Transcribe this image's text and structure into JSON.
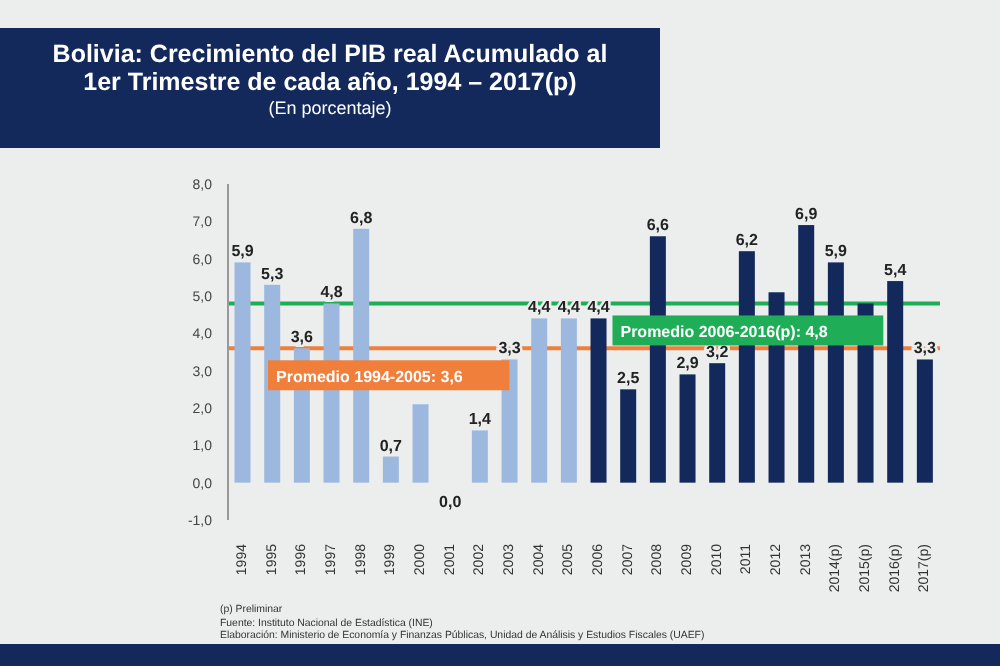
{
  "chart_data": {
    "type": "bar",
    "title": "Bolivia: Crecimiento del PIB real Acumulado al 1er Trimestre de cada año, 1994 – 2017(p)",
    "subtitle": "(En porcentaje)",
    "categories": [
      "1994",
      "1995",
      "1996",
      "1997",
      "1998",
      "1999",
      "2000",
      "2001",
      "2002",
      "2003",
      "2004",
      "2005",
      "2006",
      "2007",
      "2008",
      "2009",
      "2010",
      "2011",
      "2012",
      "2013",
      "2014(p)",
      "2015(p)",
      "2016(p)",
      "2017(p)"
    ],
    "values": [
      5.9,
      5.3,
      3.6,
      4.8,
      6.8,
      0.7,
      2.1,
      0.0,
      1.4,
      3.3,
      4.4,
      4.4,
      4.4,
      2.5,
      6.6,
      2.9,
      3.2,
      6.2,
      5.1,
      6.9,
      5.9,
      4.8,
      5.4,
      3.3
    ],
    "colors": [
      "#9db8de",
      "#9db8de",
      "#9db8de",
      "#9db8de",
      "#9db8de",
      "#9db8de",
      "#9db8de",
      "#9db8de",
      "#9db8de",
      "#9db8de",
      "#9db8de",
      "#9db8de",
      "#13295b",
      "#13295b",
      "#13295b",
      "#13295b",
      "#13295b",
      "#13295b",
      "#13295b",
      "#13295b",
      "#13295b",
      "#13295b",
      "#13295b",
      "#13295b"
    ],
    "value_labels": [
      "5,9",
      "5,3",
      "3,6",
      "4,8",
      "6,8",
      "0,7",
      null,
      "0,0",
      "1,4",
      "3,3",
      "4,4",
      "4,4",
      "4,4",
      "2,5",
      "6,6",
      "2,9",
      "3,2",
      "6,2",
      null,
      "6,9",
      "5,9",
      null,
      "5,4",
      "3,3"
    ],
    "ylim": [
      -1.0,
      8.0
    ],
    "yticks": [
      {
        "value": -1,
        "label": "-1,0"
      },
      {
        "value": 0,
        "label": "0,0"
      },
      {
        "value": 1,
        "label": "1,0"
      },
      {
        "value": 2,
        "label": "2,0"
      },
      {
        "value": 3,
        "label": "3,0"
      },
      {
        "value": 4,
        "label": "4,0"
      },
      {
        "value": 5,
        "label": "5,0"
      },
      {
        "value": 6,
        "label": "6,0"
      },
      {
        "value": 7,
        "label": "7,0"
      },
      {
        "value": 8,
        "label": "8,0"
      }
    ],
    "ref_lines": [
      {
        "axis": "y",
        "value": 3.6,
        "label": "Promedio 1994-2005: 3,6",
        "color": "#f07f3c"
      },
      {
        "axis": "y",
        "value": 4.8,
        "label": "Promedio 2006-2016(p): 4,8",
        "color": "#1fae57"
      }
    ],
    "annotations": [
      "(p) Preliminar",
      "Fuente: Instituto Nacional de Estadística (INE)",
      "Elaboración: Ministerio de Economía y Finanzas Públicas, Unidad de Análisis y Estudios Fiscales (UAEF)"
    ],
    "grid": false,
    "legend": false
  }
}
